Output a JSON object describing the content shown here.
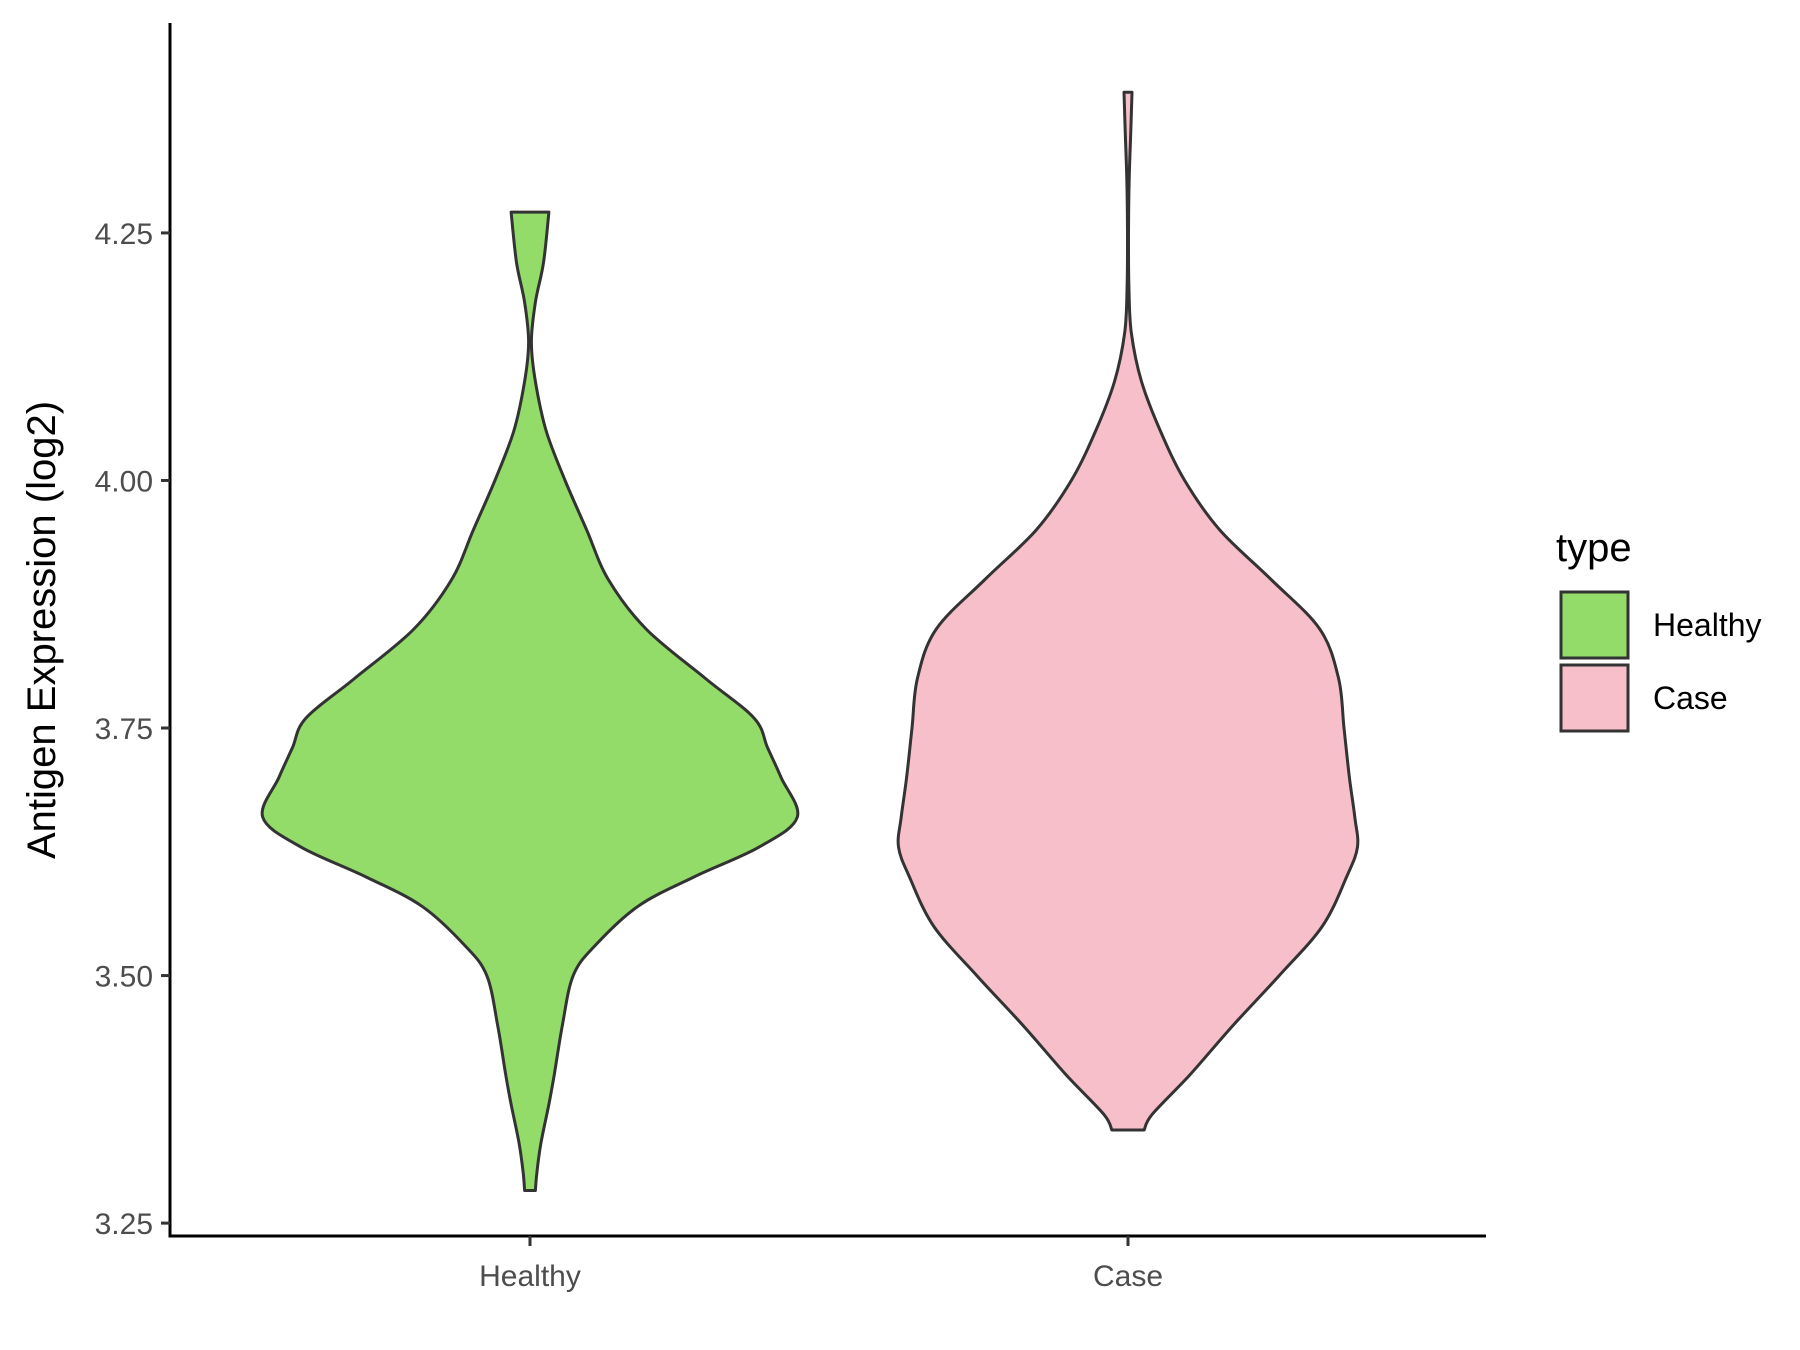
{
  "chart_data": {
    "type": "violin",
    "ylabel": "Antigen Expression (log2)",
    "xlabel": "",
    "ylim": [
      3.237,
      4.462
    ],
    "yticks": [
      "3.25",
      "3.50",
      "3.75",
      "4.00",
      "4.25"
    ],
    "categories": [
      "Healthy",
      "Case"
    ],
    "legend": {
      "title": "type",
      "position": "right",
      "entries": [
        "Healthy",
        "Case"
      ]
    },
    "grid": false,
    "series": [
      {
        "name": "Healthy",
        "color": "#93DC6A",
        "min": 3.283,
        "max": 4.271,
        "profile": [
          [
            3.283,
            0.02
          ],
          [
            3.3,
            0.025
          ],
          [
            3.33,
            0.04
          ],
          [
            3.37,
            0.07
          ],
          [
            3.4,
            0.09
          ],
          [
            3.45,
            0.12
          ],
          [
            3.5,
            0.16
          ],
          [
            3.53,
            0.24
          ],
          [
            3.57,
            0.4
          ],
          [
            3.6,
            0.61
          ],
          [
            3.63,
            0.85
          ],
          [
            3.66,
            0.99
          ],
          [
            3.7,
            0.93
          ],
          [
            3.73,
            0.88
          ],
          [
            3.76,
            0.83
          ],
          [
            3.8,
            0.65
          ],
          [
            3.85,
            0.43
          ],
          [
            3.9,
            0.29
          ],
          [
            3.95,
            0.21
          ],
          [
            4.0,
            0.13
          ],
          [
            4.05,
            0.06
          ],
          [
            4.1,
            0.02
          ],
          [
            4.14,
            0.005
          ],
          [
            4.18,
            0.02
          ],
          [
            4.22,
            0.05
          ],
          [
            4.271,
            0.07
          ]
        ]
      },
      {
        "name": "Case",
        "color": "#F7BFCA",
        "min": 3.344,
        "max": 4.392,
        "profile": [
          [
            3.344,
            0.06
          ],
          [
            3.36,
            0.09
          ],
          [
            3.4,
            0.23
          ],
          [
            3.45,
            0.39
          ],
          [
            3.5,
            0.56
          ],
          [
            3.55,
            0.72
          ],
          [
            3.6,
            0.81
          ],
          [
            3.63,
            0.85
          ],
          [
            3.66,
            0.84
          ],
          [
            3.7,
            0.82
          ],
          [
            3.75,
            0.8
          ],
          [
            3.8,
            0.78
          ],
          [
            3.85,
            0.71
          ],
          [
            3.9,
            0.53
          ],
          [
            3.95,
            0.34
          ],
          [
            4.0,
            0.21
          ],
          [
            4.05,
            0.12
          ],
          [
            4.1,
            0.05
          ],
          [
            4.15,
            0.012
          ],
          [
            4.2,
            0.003
          ],
          [
            4.25,
            0.002
          ],
          [
            4.3,
            0.004
          ],
          [
            4.35,
            0.01
          ],
          [
            4.392,
            0.015
          ]
        ]
      }
    ]
  }
}
